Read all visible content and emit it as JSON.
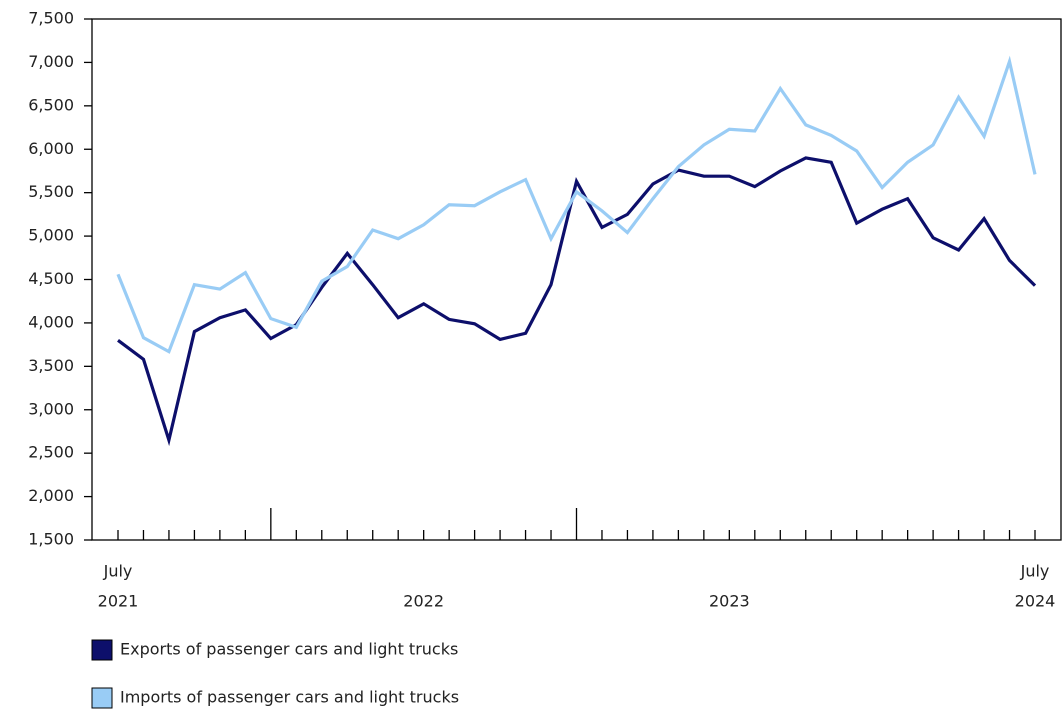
{
  "chart_data": {
    "type": "line",
    "categories": [
      "July",
      null,
      null,
      null,
      null,
      null,
      null,
      null,
      null,
      null,
      null,
      null,
      null,
      null,
      null,
      null,
      null,
      null,
      null,
      null,
      null,
      null,
      null,
      null,
      null,
      null,
      null,
      null,
      null,
      null,
      null,
      null,
      null,
      null,
      null,
      null,
      "July"
    ],
    "years": [
      {
        "label": "2021",
        "from": 0,
        "to": 0
      },
      {
        "label": "2022",
        "from": 6,
        "to": 17
      },
      {
        "label": "2023",
        "from": 18,
        "to": 29
      },
      {
        "label": "2024",
        "from": 36,
        "to": 36
      }
    ],
    "series": [
      {
        "name": "Exports of passenger cars and light trucks",
        "color": "#0d0f6b",
        "values": [
          3800,
          3580,
          2650,
          3900,
          4060,
          4150,
          3820,
          3980,
          4410,
          4800,
          4440,
          4060,
          4220,
          4040,
          3990,
          3810,
          3880,
          4440,
          5630,
          5100,
          5250,
          5600,
          5760,
          5690,
          5690,
          5570,
          5750,
          5900,
          5850,
          5150,
          5310,
          5430,
          4980,
          4840,
          5200,
          4720,
          4430
        ]
      },
      {
        "name": "Imports of passenger cars and light trucks",
        "color": "#99ccf5",
        "values": [
          4560,
          3830,
          3670,
          4440,
          4390,
          4580,
          4050,
          3950,
          4480,
          4650,
          5070,
          4970,
          5130,
          5360,
          5350,
          5510,
          5650,
          4970,
          5510,
          5290,
          5040,
          5430,
          5800,
          6050,
          6230,
          6210,
          6700,
          6280,
          6160,
          5980,
          5560,
          5850,
          6050,
          6600,
          6150,
          7010,
          5710
        ]
      }
    ],
    "ylim": [
      1500,
      7500
    ],
    "yticks": [
      {
        "value": 1500,
        "label": "1,500"
      },
      {
        "value": 2000,
        "label": "2,000"
      },
      {
        "value": 2500,
        "label": "2,500"
      },
      {
        "value": 3000,
        "label": "3,000"
      },
      {
        "value": 3500,
        "label": "3,500"
      },
      {
        "value": 4000,
        "label": "4,000"
      },
      {
        "value": 4500,
        "label": "4,500"
      },
      {
        "value": 5000,
        "label": "5,000"
      },
      {
        "value": 5500,
        "label": "5,500"
      },
      {
        "value": 6000,
        "label": "6,000"
      },
      {
        "value": 6500,
        "label": "6,500"
      },
      {
        "value": 7000,
        "label": "7,000"
      },
      {
        "value": 7500,
        "label": "7,500"
      }
    ],
    "grid": false
  }
}
